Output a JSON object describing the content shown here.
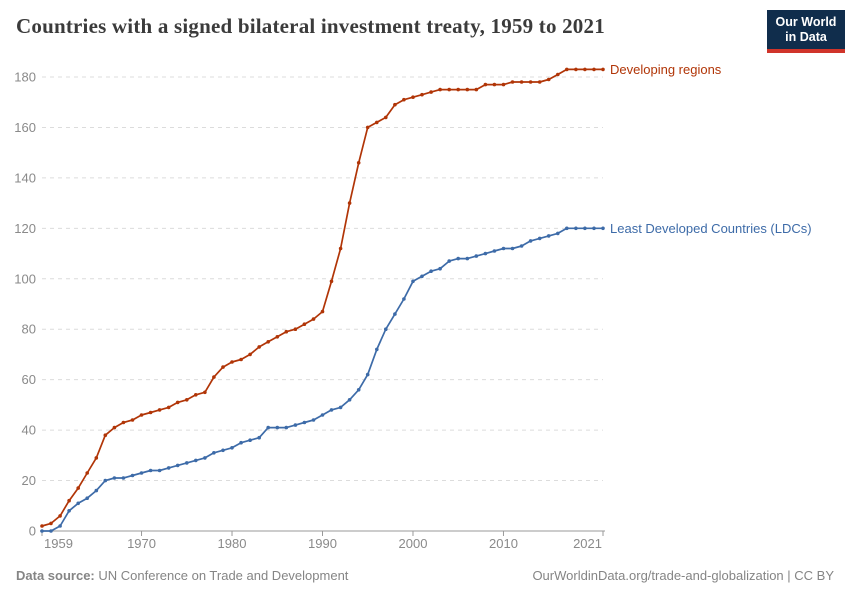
{
  "header": {
    "title": "Countries with a signed bilateral investment treaty, 1959 to 2021",
    "logo": {
      "line1": "Our World",
      "line2": "in Data"
    }
  },
  "chart_data": {
    "type": "line",
    "title": "Countries with a signed bilateral investment treaty, 1959 to 2021",
    "xlabel": "",
    "ylabel": "",
    "xlim": [
      1959,
      2021
    ],
    "ylim": [
      0,
      180
    ],
    "xticks": [
      1959,
      1970,
      1980,
      1990,
      2000,
      2010,
      2021
    ],
    "yticks": [
      0,
      20,
      40,
      60,
      80,
      100,
      120,
      140,
      160,
      180
    ],
    "grid": "horizontal-dashed",
    "legend_position": "end-of-line-labels",
    "x": [
      1959,
      1960,
      1961,
      1962,
      1963,
      1964,
      1965,
      1966,
      1967,
      1968,
      1969,
      1970,
      1971,
      1972,
      1973,
      1974,
      1975,
      1976,
      1977,
      1978,
      1979,
      1980,
      1981,
      1982,
      1983,
      1984,
      1985,
      1986,
      1987,
      1988,
      1989,
      1990,
      1991,
      1992,
      1993,
      1994,
      1995,
      1996,
      1997,
      1998,
      1999,
      2000,
      2001,
      2002,
      2003,
      2004,
      2005,
      2006,
      2007,
      2008,
      2009,
      2010,
      2011,
      2012,
      2013,
      2014,
      2015,
      2016,
      2017,
      2018,
      2019,
      2020,
      2021
    ],
    "series": [
      {
        "name": "Developing regions",
        "color": "#b13507",
        "values": [
          2,
          3,
          6,
          12,
          17,
          23,
          29,
          38,
          41,
          43,
          44,
          46,
          47,
          48,
          49,
          51,
          52,
          54,
          55,
          61,
          65,
          67,
          68,
          70,
          73,
          75,
          77,
          79,
          80,
          82,
          84,
          87,
          99,
          112,
          130,
          146,
          160,
          162,
          164,
          169,
          171,
          172,
          173,
          174,
          175,
          175,
          175,
          175,
          175,
          177,
          177,
          177,
          178,
          178,
          178,
          178,
          179,
          181,
          183,
          183,
          183,
          183,
          183
        ]
      },
      {
        "name": "Least Developed Countries (LDCs)",
        "color": "#3d6ba8",
        "values": [
          0,
          0,
          2,
          8,
          11,
          13,
          16,
          20,
          21,
          21,
          22,
          23,
          24,
          24,
          25,
          26,
          27,
          28,
          29,
          31,
          32,
          33,
          35,
          36,
          37,
          41,
          41,
          41,
          42,
          43,
          44,
          46,
          48,
          49,
          52,
          56,
          62,
          72,
          80,
          86,
          92,
          99,
          101,
          103,
          104,
          107,
          108,
          108,
          109,
          110,
          111,
          112,
          112,
          113,
          115,
          116,
          117,
          118,
          120,
          120,
          120,
          120,
          120
        ]
      }
    ],
    "style": {
      "grid_color": "#dcdcdc",
      "axis_color": "#9a9a9a",
      "tick_label_color": "#8a8a8a"
    }
  },
  "footer": {
    "datasource_label": "Data source:",
    "datasource_value": "UN Conference on Trade and Development",
    "link": "OurWorldinData.org/trade-and-globalization | CC BY"
  }
}
